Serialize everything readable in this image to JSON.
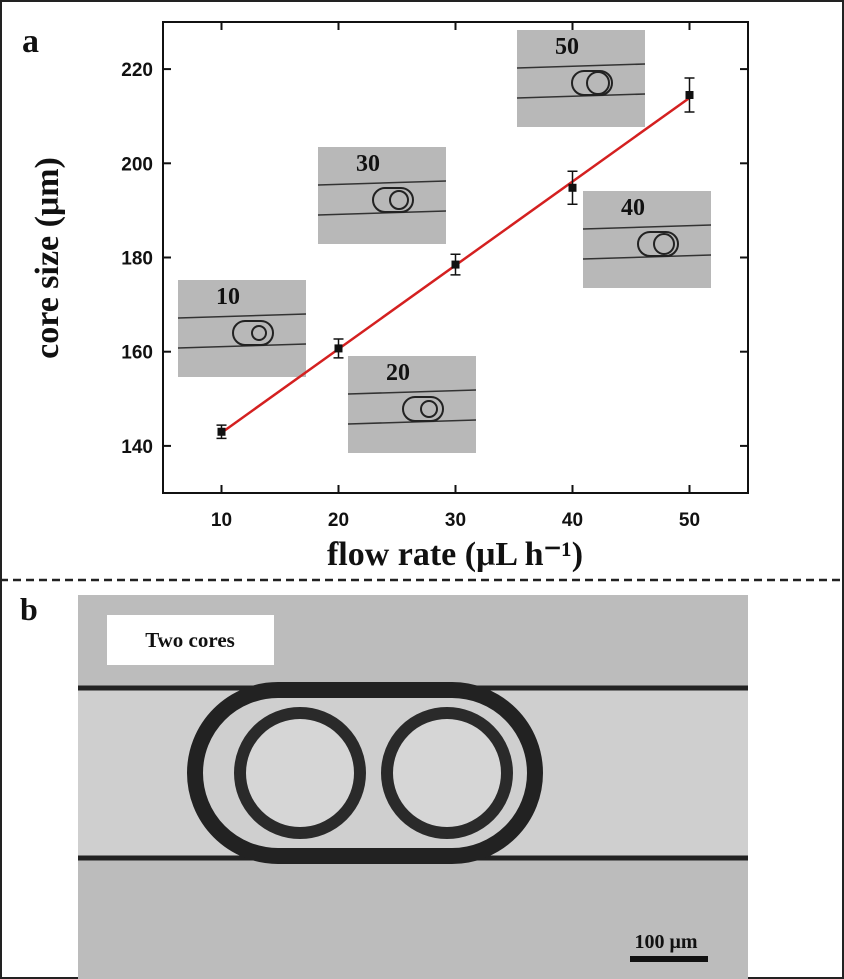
{
  "panel_a": {
    "label": "a"
  },
  "chart_data": {
    "type": "scatter",
    "x_label": "flow rate  (μL h⁻¹)",
    "y_label": "core size  (μm)",
    "x": [
      10,
      20,
      30,
      40,
      50
    ],
    "series": [
      {
        "color": "#111111",
        "values": [
          143,
          160.7,
          178.5,
          194.8,
          214.5
        ],
        "errors": [
          1.4,
          2,
          2.2,
          3.5,
          3.6
        ]
      }
    ],
    "fit": {
      "color": "#d42020",
      "x": [
        10,
        50
      ],
      "values": [
        142.8,
        213.9
      ]
    },
    "xlim": [
      5,
      55
    ],
    "ylim": [
      130,
      230
    ],
    "xticks": [
      10,
      20,
      30,
      40,
      50
    ],
    "yticks": [
      140,
      160,
      180,
      200,
      220
    ],
    "insets": [
      "10",
      "20",
      "30",
      "40",
      "50"
    ]
  },
  "panel_b": {
    "label": "b",
    "caption": "Two cores",
    "scale_bar": "100 μm"
  }
}
